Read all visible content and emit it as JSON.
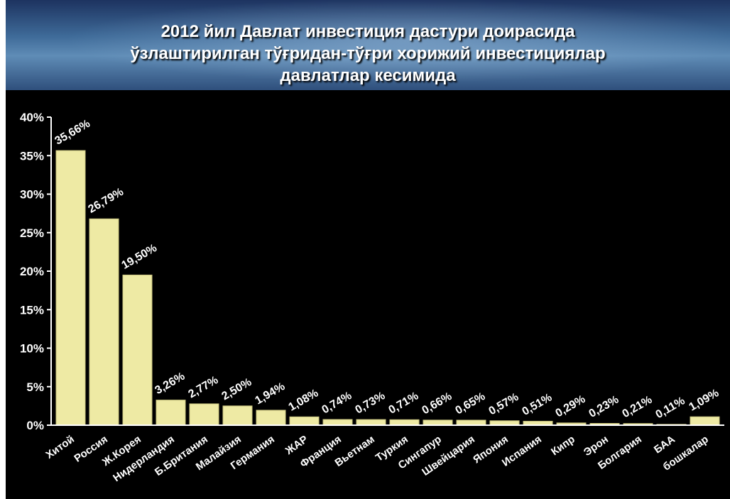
{
  "chart_data": {
    "type": "bar",
    "title": "2012 йил Давлат инвестиция дастури доирасида\nўзлаштирилган тўғридан-тўғри хорижий инвестициялар\nдавлатлар кесимида",
    "categories": [
      "Хитой",
      "Россия",
      "Ж.Корея",
      "Нидерландия",
      "Б.Британия",
      "Малайзия",
      "Германия",
      "ЖАР",
      "Франция",
      "Вьетнам",
      "Туркия",
      "Сингапур",
      "Швейцария",
      "Япония",
      "Испания",
      "Кипр",
      "Эрон",
      "Болгария",
      "БАА",
      "бошкалар"
    ],
    "values": [
      35.66,
      26.79,
      19.5,
      3.26,
      2.77,
      2.5,
      1.94,
      1.08,
      0.74,
      0.73,
      0.71,
      0.66,
      0.65,
      0.57,
      0.51,
      0.29,
      0.23,
      0.21,
      0.11,
      1.09
    ],
    "data_labels": [
      "35,66%",
      "26,79%",
      "19,50%",
      "3,26%",
      "2,77%",
      "2,50%",
      "1,94%",
      "1,08%",
      "0,74%",
      "0,73%",
      "0,71%",
      "0,66%",
      "0,65%",
      "0,57%",
      "0,51%",
      "0,29%",
      "0,23%",
      "0,21%",
      "0,11%",
      "1,09%"
    ],
    "ylim": [
      0,
      40
    ],
    "yticks": [
      "0%",
      "5%",
      "10%",
      "15%",
      "20%",
      "25%",
      "30%",
      "35%",
      "40%"
    ],
    "xlabel": "",
    "ylabel": "",
    "grid": false,
    "legend": "none",
    "colors": {
      "bar_fill": "#eeeaa4",
      "bar_edge": "#c9c47e",
      "plot_background": "#000000",
      "text": "#ffffff"
    }
  }
}
